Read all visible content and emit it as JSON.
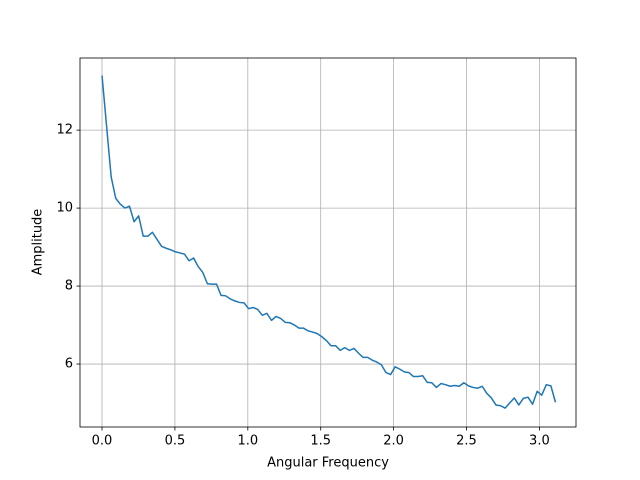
{
  "chart_data": {
    "type": "line",
    "x_label": "Angular Frequency",
    "y_label": "Amplitude",
    "color": "#1f77b4",
    "grid": true,
    "xlim": [
      -0.151,
      3.251
    ],
    "ylim": [
      4.385,
      13.85
    ],
    "xticks": [
      {
        "value": 0,
        "label": "0.0"
      },
      0.5,
      {
        "value": 1,
        "label": "1.0"
      },
      1.5,
      {
        "value": 2,
        "label": "2.0"
      },
      2.5,
      {
        "value": 3,
        "label": "3.0"
      }
    ],
    "yticks": [
      6,
      8,
      10,
      12
    ],
    "x": [
      0,
      0.0314,
      0.0628,
      0.0942,
      0.1257,
      0.1571,
      0.1885,
      0.2199,
      0.2513,
      0.2827,
      0.3142,
      0.3456,
      0.377,
      0.4084,
      0.4398,
      0.4712,
      0.5027,
      0.5341,
      0.5655,
      0.5969,
      0.6283,
      0.6597,
      0.6912,
      0.7226,
      0.754,
      0.7854,
      0.8168,
      0.8482,
      0.8796,
      0.9111,
      0.9425,
      0.9739,
      1.0053,
      1.0367,
      1.0681,
      1.0996,
      1.131,
      1.1624,
      1.1938,
      1.2252,
      1.2566,
      1.2881,
      1.3195,
      1.3509,
      1.3823,
      1.4137,
      1.4451,
      1.4765,
      1.508,
      1.5394,
      1.5708,
      1.6022,
      1.6336,
      1.665,
      1.6965,
      1.7279,
      1.7593,
      1.7907,
      1.8221,
      1.8535,
      1.885,
      1.9164,
      1.9478,
      1.9792,
      2.0106,
      2.042,
      2.0735,
      2.1049,
      2.1363,
      2.1677,
      2.1991,
      2.2305,
      2.2619,
      2.2934,
      2.3248,
      2.3562,
      2.3876,
      2.419,
      2.4504,
      2.4819,
      2.5133,
      2.5447,
      2.5761,
      2.6075,
      2.6389,
      2.6704,
      2.7018,
      2.7332,
      2.7646,
      2.796,
      2.8274,
      2.8588,
      2.8903,
      2.9217,
      2.9531,
      2.9845,
      3.0159,
      3.0473,
      3.0788,
      3.1102
    ],
    "values": [
      13.4,
      12.1,
      10.8,
      10.25,
      10.1,
      10.0,
      10.05,
      9.65,
      9.8,
      9.28,
      9.28,
      9.38,
      9.2,
      9.02,
      8.97,
      8.93,
      8.88,
      8.85,
      8.82,
      8.65,
      8.72,
      8.5,
      8.35,
      8.06,
      8.05,
      8.05,
      7.76,
      7.75,
      7.67,
      7.62,
      7.58,
      7.57,
      7.42,
      7.45,
      7.4,
      7.25,
      7.3,
      7.12,
      7.22,
      7.17,
      7.07,
      7.06,
      7.0,
      6.92,
      6.92,
      6.85,
      6.82,
      6.78,
      6.7,
      6.6,
      6.47,
      6.47,
      6.35,
      6.42,
      6.35,
      6.4,
      6.28,
      6.17,
      6.17,
      6.1,
      6.05,
      5.98,
      5.78,
      5.73,
      5.93,
      5.87,
      5.8,
      5.78,
      5.68,
      5.68,
      5.7,
      5.53,
      5.52,
      5.4,
      5.5,
      5.47,
      5.43,
      5.45,
      5.43,
      5.52,
      5.44,
      5.4,
      5.38,
      5.43,
      5.25,
      5.13,
      4.95,
      4.93,
      4.87,
      5.0,
      5.13,
      4.95,
      5.12,
      5.15,
      4.97,
      5.3,
      5.2,
      5.47,
      5.44,
      5.02
    ]
  }
}
